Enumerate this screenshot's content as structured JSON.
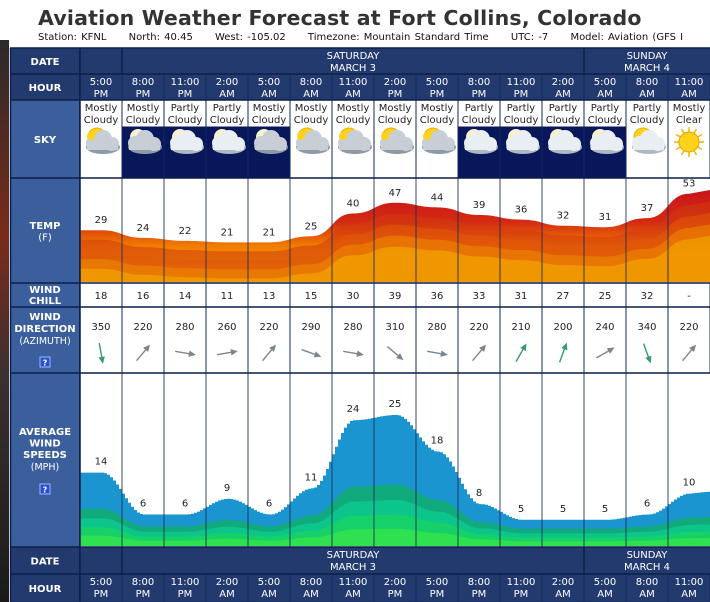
{
  "page": {
    "title": "Aviation Weather Forecast at Fort Collins, Colorado",
    "station": "Station: KFNL",
    "north": "North: 40.45",
    "west": "West: -105.02",
    "timezone": "Timezone: Mountain Standard Time",
    "utc": "UTC: -7",
    "model": "Model: Aviation (GFS I"
  },
  "rows": {
    "date": "DATE",
    "hour": "HOUR",
    "sky": "SKY",
    "temp": "TEMP",
    "temp_unit": "(F)",
    "wind_chill": "WIND CHILL",
    "wind_dir": "WIND DIRECTION",
    "wind_dir_sub": "(AZIMUTH)",
    "wind_speed": "AVERAGE WIND SPEEDS",
    "wind_speed_unit": "(MPH)",
    "help_icon_text": "?"
  },
  "dates": [
    {
      "weekday": "SATURDAY",
      "date": "MARCH 3",
      "start": 2,
      "span": 11
    },
    {
      "weekday": "SUNDAY",
      "date": "MARCH 4",
      "start": 13,
      "span": 3
    }
  ],
  "chart_data": {
    "type": "area",
    "columns": [
      {
        "time": "5:00",
        "ampm": "PM",
        "sky1": "Mostly",
        "sky2": "Cloudy",
        "sky_icon": "cloudy-day",
        "night": false,
        "temp": 29,
        "chill": "18",
        "dir": 350,
        "speed": 14
      },
      {
        "time": "8:00",
        "ampm": "PM",
        "sky1": "Mostly",
        "sky2": "Cloudy",
        "sky_icon": "cloudy-night",
        "night": true,
        "temp": 24,
        "chill": "16",
        "dir": 220,
        "speed": 6
      },
      {
        "time": "11:00",
        "ampm": "PM",
        "sky1": "Partly",
        "sky2": "Cloudy",
        "sky_icon": "partly-cloudy-night",
        "night": true,
        "temp": 22,
        "chill": "14",
        "dir": 280,
        "speed": 6
      },
      {
        "time": "2:00",
        "ampm": "AM",
        "sky1": "Partly",
        "sky2": "Cloudy",
        "sky_icon": "partly-cloudy-night",
        "night": true,
        "temp": 21,
        "chill": "11",
        "dir": 260,
        "speed": 9
      },
      {
        "time": "5:00",
        "ampm": "AM",
        "sky1": "Mostly",
        "sky2": "Cloudy",
        "sky_icon": "cloudy-night",
        "night": true,
        "temp": 21,
        "chill": "13",
        "dir": 220,
        "speed": 6
      },
      {
        "time": "8:00",
        "ampm": "AM",
        "sky1": "Mostly",
        "sky2": "Cloudy",
        "sky_icon": "cloudy-day",
        "night": false,
        "temp": 25,
        "chill": "15",
        "dir": 290,
        "speed": 11
      },
      {
        "time": "11:00",
        "ampm": "AM",
        "sky1": "Mostly",
        "sky2": "Cloudy",
        "sky_icon": "cloudy-day",
        "night": false,
        "temp": 40,
        "chill": "30",
        "dir": 280,
        "speed": 24
      },
      {
        "time": "2:00",
        "ampm": "PM",
        "sky1": "Mostly",
        "sky2": "Cloudy",
        "sky_icon": "cloudy-day",
        "night": false,
        "temp": 47,
        "chill": "39",
        "dir": 310,
        "speed": 25
      },
      {
        "time": "5:00",
        "ampm": "PM",
        "sky1": "Mostly",
        "sky2": "Cloudy",
        "sky_icon": "cloudy-day",
        "night": false,
        "temp": 44,
        "chill": "36",
        "dir": 280,
        "speed": 18
      },
      {
        "time": "8:00",
        "ampm": "PM",
        "sky1": "Partly",
        "sky2": "Cloudy",
        "sky_icon": "partly-cloudy-night",
        "night": true,
        "temp": 39,
        "chill": "33",
        "dir": 220,
        "speed": 8
      },
      {
        "time": "11:00",
        "ampm": "PM",
        "sky1": "Partly",
        "sky2": "Cloudy",
        "sky_icon": "partly-cloudy-night",
        "night": true,
        "temp": 36,
        "chill": "31",
        "dir": 210,
        "speed": 5
      },
      {
        "time": "2:00",
        "ampm": "AM",
        "sky1": "Partly",
        "sky2": "Cloudy",
        "sky_icon": "partly-cloudy-night",
        "night": true,
        "temp": 32,
        "chill": "27",
        "dir": 200,
        "speed": 5
      },
      {
        "time": "5:00",
        "ampm": "AM",
        "sky1": "Partly",
        "sky2": "Cloudy",
        "sky_icon": "partly-cloudy-night",
        "night": true,
        "temp": 31,
        "chill": "25",
        "dir": 240,
        "speed": 5
      },
      {
        "time": "8:00",
        "ampm": "AM",
        "sky1": "Partly",
        "sky2": "Cloudy",
        "sky_icon": "partly-cloudy-day",
        "night": false,
        "temp": 37,
        "chill": "32",
        "dir": 340,
        "speed": 6
      },
      {
        "time": "11:00",
        "ampm": "AM",
        "sky1": "Mostly",
        "sky2": "Clear",
        "sky_icon": "sunny",
        "night": false,
        "temp": 53,
        "chill": "-",
        "dir": 220,
        "speed": 10
      }
    ]
  },
  "colors": {
    "header_bg": "#233a6f",
    "label_bg": "#3a5f9c",
    "night_bg": "#08175a",
    "wind_blue": "#1b95cf",
    "wind_green": "#0bc58a",
    "temp_red": "#c8141a",
    "temp_orange": "#f07a00",
    "temp_yellow": "#f6c000",
    "arrow_green": "#3a9a70"
  }
}
